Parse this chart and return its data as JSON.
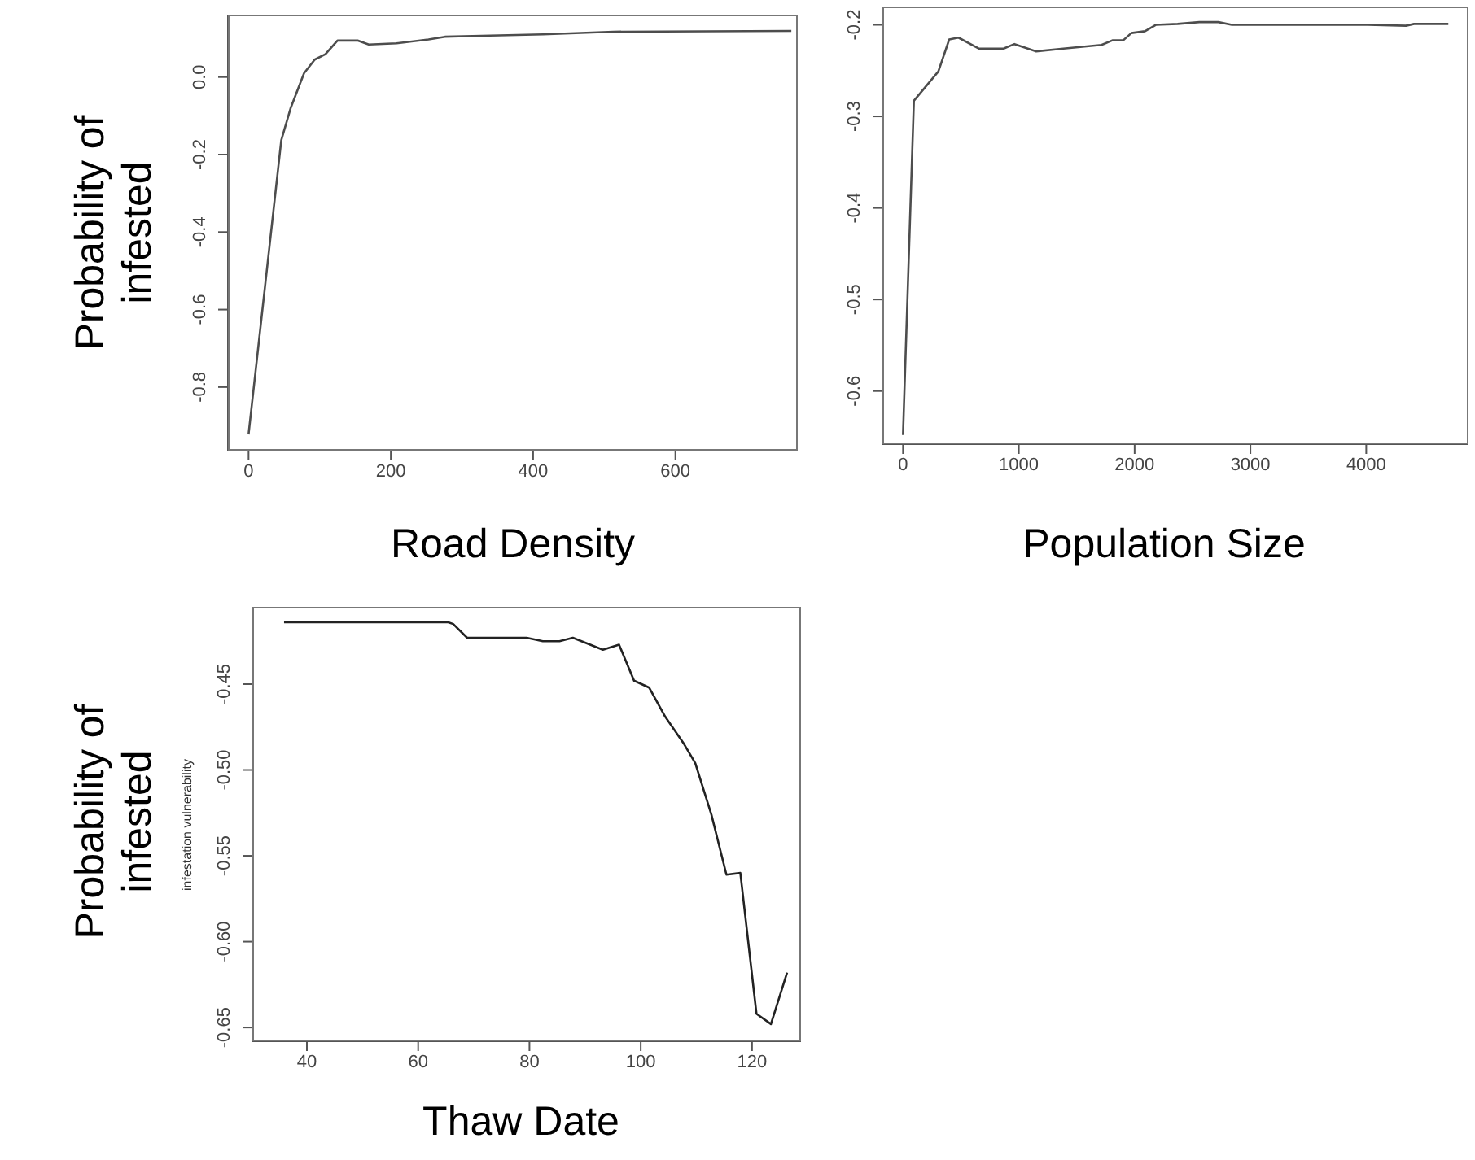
{
  "chart_data": [
    {
      "type": "line",
      "xlabel": "Road Density",
      "ylabel": "Probability of infested",
      "xlim": [
        -29,
        772
      ],
      "ylim": [
        -0.964,
        0.161
      ],
      "xticks": [
        0,
        200,
        400,
        600
      ],
      "yticks": [
        -0.8,
        -0.6,
        -0.4,
        -0.2,
        {
          "value": 0,
          "label": "0.0"
        }
      ],
      "x": [
        0,
        46,
        59,
        78,
        93,
        108,
        125,
        154,
        169,
        208,
        253,
        276,
        315,
        414,
        513,
        763
      ],
      "series": [
        {
          "color": "#4d4d4d",
          "values": [
            -0.922,
            -0.163,
            -0.081,
            0.01,
            0.045,
            0.059,
            0.094,
            0.094,
            0.084,
            0.087,
            0.097,
            0.104,
            0.106,
            0.11,
            0.117,
            0.119
          ]
        }
      ]
    },
    {
      "type": "line",
      "xlabel": "Population Size",
      "xlim": [
        -178,
        4883
      ],
      "ylim": [
        -0.658,
        -0.18
      ],
      "xticks": [
        0,
        1000,
        2000,
        3000,
        4000
      ],
      "yticks": [
        -0.6,
        -0.5,
        -0.4,
        -0.3,
        -0.2
      ],
      "x": [
        0,
        94,
        305,
        399,
        479,
        657,
        869,
        962,
        1150,
        1385,
        1714,
        1808,
        1901,
        1972,
        2089,
        2183,
        2371,
        2559,
        2723,
        2840,
        4014,
        4343,
        4413,
        4709
      ],
      "series": [
        {
          "color": "#4d4d4d",
          "values": [
            -0.648,
            -0.283,
            -0.251,
            -0.216,
            -0.214,
            -0.226,
            -0.226,
            -0.221,
            -0.229,
            -0.226,
            -0.222,
            -0.217,
            -0.217,
            -0.209,
            -0.207,
            -0.2,
            -0.199,
            -0.197,
            -0.197,
            -0.2,
            -0.2,
            -0.201,
            -0.199,
            -0.199
          ]
        }
      ]
    },
    {
      "type": "line",
      "xlabel": "Thaw Date",
      "ylabel": "Probability of infested",
      "annotations": [
        "infestation vulnerability"
      ],
      "xlim": [
        30.2,
        128.8
      ],
      "ylim": [
        -0.658,
        -0.405
      ],
      "xticks": [
        40,
        60,
        80,
        100,
        120
      ],
      "yticks": [
        -0.65,
        {
          "value": -0.6,
          "label": "-0.60"
        },
        -0.55,
        {
          "value": -0.5,
          "label": "-0.50"
        },
        -0.45
      ],
      "x": [
        35.9,
        65.4,
        66.3,
        68.8,
        79.5,
        82.4,
        85.4,
        87.8,
        93.2,
        96.1,
        98.8,
        101.5,
        104.4,
        107.8,
        109.8,
        112.7,
        115.4,
        117.9,
        120.8,
        123.4,
        126.3
      ],
      "series": [
        {
          "color": "#222222",
          "values": [
            -0.414,
            -0.414,
            -0.415,
            -0.423,
            -0.423,
            -0.425,
            -0.425,
            -0.423,
            -0.43,
            -0.427,
            -0.448,
            -0.452,
            -0.469,
            -0.485,
            -0.496,
            -0.526,
            -0.561,
            -0.56,
            -0.642,
            -0.648,
            -0.618
          ]
        }
      ]
    }
  ]
}
